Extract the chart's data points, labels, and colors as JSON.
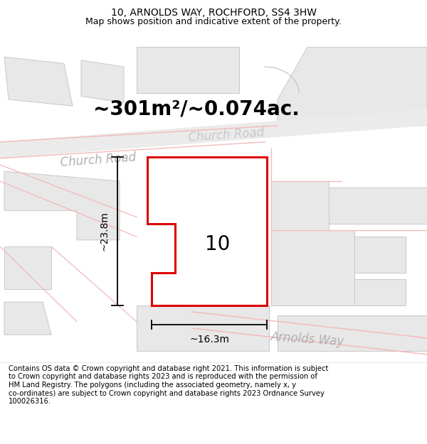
{
  "title": "10, ARNOLDS WAY, ROCHFORD, SS4 3HW",
  "subtitle": "Map shows position and indicative extent of the property.",
  "area_text": "~301m²/~0.074ac.",
  "property_label": "10",
  "dim_vertical": "~23.8m",
  "dim_horizontal": "~16.3m",
  "road_label_1": "Church Road",
  "road_label_2": "Arnolds Way",
  "copyright_text": "Contains OS data © Crown copyright and database right 2021. This information is subject\nto Crown copyright and database rights 2023 and is reproduced with the permission of\nHM Land Registry. The polygons (including the associated geometry, namely x, y\nco-ordinates) are subject to Crown copyright and database rights 2023 Ordnance Survey\n100026316.",
  "map_bg": "#f2f2f2",
  "property_fill": "white",
  "property_edge": "#dd0000",
  "road_outline_color": "#f5b8b8",
  "road_fill_color": "#e8e8e8",
  "building_fill": "#e8e8e8",
  "building_edge": "#c0c0c0",
  "title_fontsize": 10,
  "subtitle_fontsize": 9,
  "area_fontsize": 20,
  "label_fontsize": 20,
  "road_label_fontsize": 12,
  "copyright_fontsize": 7.2
}
